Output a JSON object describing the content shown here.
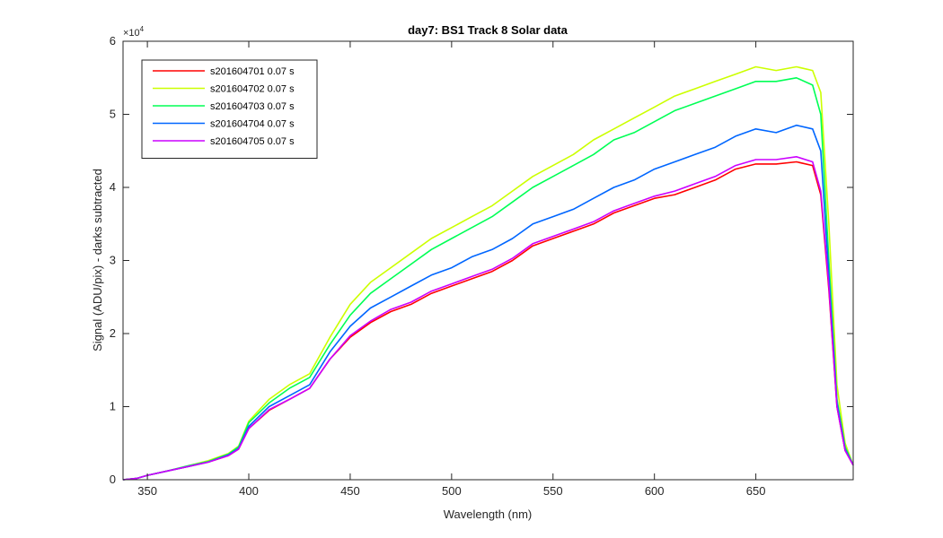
{
  "chart_data": {
    "type": "line",
    "title": "day7: BS1  Track 8 Solar data",
    "xlabel": "Wavelength (nm)",
    "ylabel": "Signal (ADU/pix) - darks subtracted",
    "exponent_label": "×10",
    "exponent_power": "4",
    "xlim": [
      338,
      698
    ],
    "ylim": [
      0,
      60000
    ],
    "xticks": [
      350,
      400,
      450,
      500,
      550,
      600,
      650
    ],
    "yticks": [
      0,
      10000,
      20000,
      30000,
      40000,
      50000,
      60000
    ],
    "ytick_labels": [
      "0",
      "1",
      "2",
      "3",
      "4",
      "5",
      "6"
    ],
    "grid": false,
    "legend_position": "top-left",
    "x": [
      338,
      345,
      350,
      360,
      370,
      380,
      390,
      395,
      400,
      410,
      420,
      430,
      440,
      450,
      460,
      470,
      480,
      490,
      500,
      510,
      520,
      530,
      540,
      550,
      560,
      570,
      580,
      590,
      600,
      610,
      620,
      630,
      640,
      650,
      660,
      670,
      678,
      682,
      686,
      690,
      694,
      698
    ],
    "series": [
      {
        "name": "s201604701 0.07 s",
        "color": "#ff0000",
        "values": [
          0,
          200,
          600,
          1200,
          1800,
          2400,
          3300,
          4200,
          7000,
          9500,
          11000,
          12500,
          16500,
          19500,
          21500,
          23000,
          24000,
          25500,
          26500,
          27500,
          28500,
          30000,
          32000,
          33000,
          34000,
          35000,
          36500,
          37500,
          38500,
          39000,
          40000,
          41000,
          42500,
          43200,
          43200,
          43500,
          43000,
          39000,
          26000,
          10000,
          4000,
          2000
        ]
      },
      {
        "name": "s201604702 0.07 s",
        "color": "#ccff00",
        "values": [
          0,
          200,
          600,
          1200,
          1900,
          2600,
          3600,
          4600,
          8000,
          11000,
          13000,
          14500,
          19500,
          24000,
          27000,
          29000,
          31000,
          33000,
          34500,
          36000,
          37500,
          39500,
          41500,
          43000,
          44500,
          46500,
          48000,
          49500,
          51000,
          52500,
          53500,
          54500,
          55500,
          56500,
          56000,
          56500,
          56000,
          53000,
          35000,
          13000,
          5000,
          2000
        ]
      },
      {
        "name": "s201604703 0.07 s",
        "color": "#00ff55",
        "values": [
          0,
          200,
          600,
          1200,
          1900,
          2500,
          3500,
          4500,
          7800,
          10500,
          12500,
          14000,
          18500,
          22500,
          25500,
          27500,
          29500,
          31500,
          33000,
          34500,
          36000,
          38000,
          40000,
          41500,
          43000,
          44500,
          46500,
          47500,
          49000,
          50500,
          51500,
          52500,
          53500,
          54500,
          54500,
          55000,
          54000,
          50000,
          30000,
          11000,
          4500,
          2000
        ]
      },
      {
        "name": "s201604704 0.07 s",
        "color": "#0066ff",
        "values": [
          0,
          200,
          600,
          1200,
          1800,
          2400,
          3400,
          4300,
          7300,
          10000,
          11500,
          13000,
          17500,
          21000,
          23500,
          25000,
          26500,
          28000,
          29000,
          30500,
          31500,
          33000,
          35000,
          36000,
          37000,
          38500,
          40000,
          41000,
          42500,
          43500,
          44500,
          45500,
          47000,
          48000,
          47500,
          48500,
          48000,
          45000,
          28000,
          10500,
          4200,
          2000
        ]
      },
      {
        "name": "s201604705 0.07 s",
        "color": "#cc00ff",
        "values": [
          0,
          200,
          600,
          1200,
          1800,
          2400,
          3300,
          4200,
          7000,
          9600,
          11000,
          12500,
          16500,
          19700,
          21700,
          23300,
          24300,
          25800,
          26800,
          27800,
          28800,
          30300,
          32300,
          33300,
          34300,
          35300,
          36800,
          37800,
          38800,
          39500,
          40500,
          41500,
          43000,
          43800,
          43800,
          44200,
          43500,
          39500,
          26500,
          10000,
          4000,
          2000
        ]
      }
    ]
  }
}
